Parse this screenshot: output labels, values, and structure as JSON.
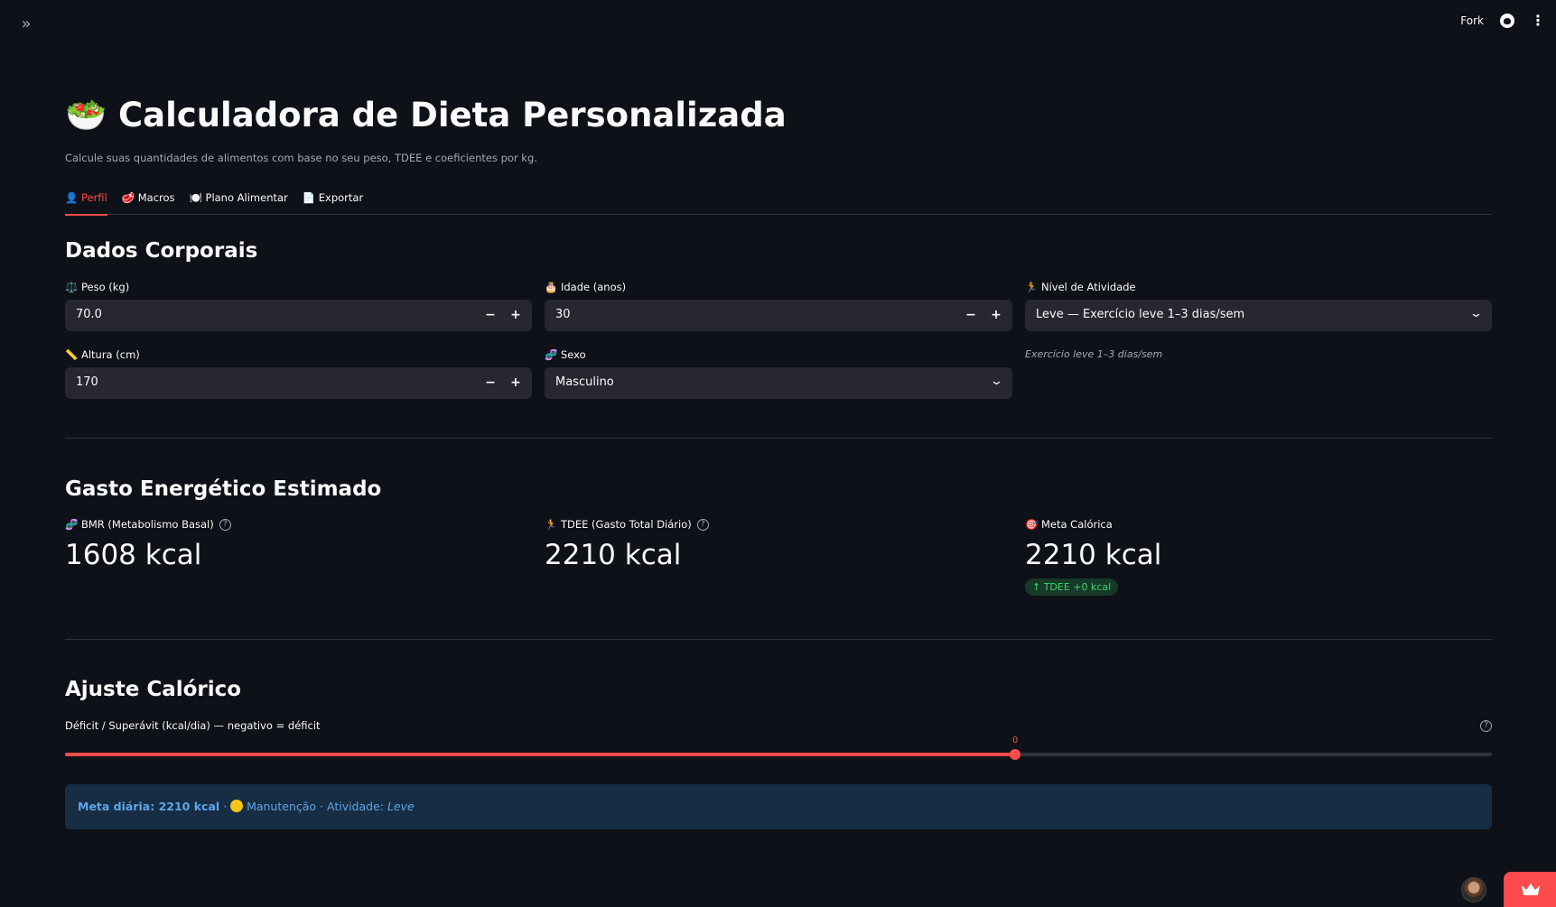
{
  "topbar": {
    "fork_label": "Fork",
    "icons": [
      "double-chevron-right-icon",
      "github-icon",
      "kebab-menu-icon"
    ]
  },
  "header": {
    "title": "🥗 Calculadora de Dieta Personalizada",
    "caption": "Calcule suas quantidades de alimentos com base no seu peso, TDEE e coeficientes por kg."
  },
  "tabs": [
    {
      "label": "👤 Perfil",
      "active": true
    },
    {
      "label": "🥩 Macros",
      "active": false
    },
    {
      "label": "🍽️ Plano Alimentar",
      "active": false
    },
    {
      "label": "📄 Exportar",
      "active": false
    }
  ],
  "body_data": {
    "heading": "Dados Corporais",
    "peso": {
      "label": "⚖️ Peso (kg)",
      "value": "70.0"
    },
    "idade": {
      "label": "🎂 Idade (anos)",
      "value": "30"
    },
    "atividade": {
      "label": "🏃 Nível de Atividade",
      "value": "Leve — Exercício leve 1–3 dias/sem",
      "help": "Exercício leve 1–3 dias/sem"
    },
    "altura": {
      "label": "📏 Altura (cm)",
      "value": "170"
    },
    "sexo": {
      "label": "🧬 Sexo",
      "value": "Masculino"
    }
  },
  "energy": {
    "heading": "Gasto Energético Estimado",
    "bmr": {
      "label": "🧬 BMR (Metabolismo Basal)",
      "value": "1608 kcal"
    },
    "tdee": {
      "label": "🏃 TDEE (Gasto Total Diário)",
      "value": "2210 kcal"
    },
    "meta": {
      "label": "🎯 Meta Calórica",
      "value": "2210 kcal",
      "delta": "↑ TDEE +0 kcal"
    }
  },
  "adjust": {
    "heading": "Ajuste Calórico",
    "slider_label": "Déficit / Superávit (kcal/dia) — negativo = déficit",
    "slider_value": "0",
    "slider_fraction": 0.666
  },
  "info": {
    "meta_text": "Meta diária: 2210 kcal",
    "sep1": " · ",
    "status": " Manutenção",
    "sep2": " · Atividade: ",
    "activity": "Leve"
  },
  "colors": {
    "background": "#0e1117",
    "accent": "#ff4b4b",
    "input_bg": "#262730",
    "info_bg": "#172d43",
    "info_text": "#5ea5ea",
    "delta_bg": "#173928",
    "delta_text": "#3dd56d"
  }
}
